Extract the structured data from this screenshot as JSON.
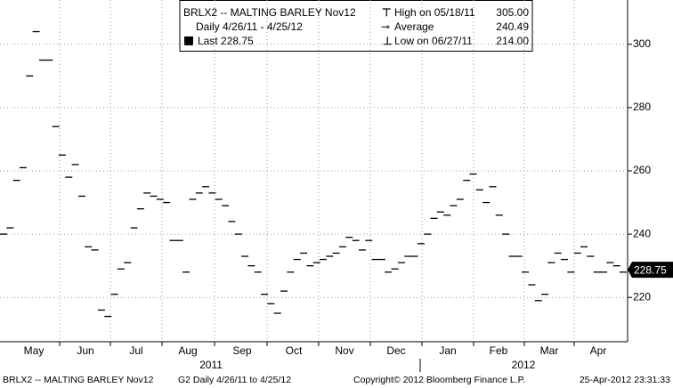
{
  "chart_data": {
    "type": "line",
    "legend": {
      "title": "BRLX2 -- MALTING BARLEY  Nov12",
      "period": "Daily 4/26/11 - 4/25/12",
      "last": "Last 228.75",
      "high": "High on 05/18/11",
      "high_value": "305.00",
      "average": "Average",
      "average_value": "240.49",
      "low": "Low on 06/27/11",
      "low_value": "214.00"
    },
    "values": [
      240,
      242,
      257,
      261,
      290,
      304,
      295,
      295,
      274,
      265,
      258,
      262,
      252,
      236,
      235,
      216,
      214,
      221,
      229,
      231,
      242,
      248,
      253,
      252,
      251,
      250,
      238,
      238,
      228,
      251,
      253,
      255,
      253,
      251,
      249,
      244,
      240,
      233,
      230,
      228,
      221,
      218,
      215,
      222,
      228,
      232,
      234,
      230,
      231,
      232,
      233,
      234,
      236,
      239,
      238,
      235,
      238,
      232,
      232,
      228,
      229,
      231,
      233,
      233,
      237,
      240,
      245,
      247,
      246,
      249,
      251,
      257,
      259,
      254,
      250,
      255,
      246,
      240,
      233,
      233,
      228,
      224,
      219,
      221,
      231,
      234,
      232,
      228,
      234,
      236,
      233,
      228,
      228,
      231,
      230,
      228
    ],
    "color": "#000000",
    "ylim": [
      206,
      314
    ],
    "yticks": [
      220,
      240,
      260,
      280,
      300
    ],
    "grid": true,
    "last": {
      "value": 228.75,
      "label": "228.75"
    },
    "months": [
      "May",
      "Jun",
      "Jul",
      "Aug",
      "Sep",
      "Oct",
      "Nov",
      "Dec",
      "Jan",
      "Feb",
      "Mar",
      "Apr"
    ],
    "years": [
      "2011",
      "2012"
    ],
    "footer": {
      "left": "BRLX2 -- MALTING BARLEY  Nov12",
      "mid": "G2  Daily  4/26/11 to 4/25/12",
      "copyright": "Copyright© 2012 Bloomberg Finance L.P.",
      "date": "25-Apr-2012 23:31:33"
    }
  }
}
